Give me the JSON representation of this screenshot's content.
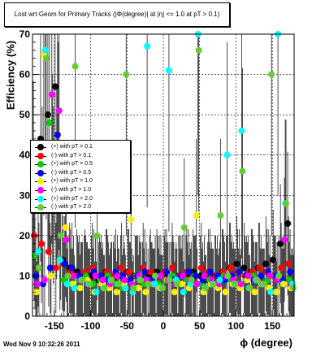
{
  "title": "Lost wrt Geom for Primary Tracks (|Φ(degree)| at |η| <= 1.0 at pT > 0.1)",
  "timestamp": "Wed Nov  9 10:32:26 2011",
  "chart_data": {
    "type": "scatter",
    "title": "Lost wrt Geom for Primary Tracks (|Φ(degree)| at |η| <= 1.0 at pT > 0.1)",
    "xlabel": "ϕ (degree)",
    "ylabel": "Efficiency (%)",
    "xlim": [
      -180,
      180
    ],
    "ylim": [
      0,
      70
    ],
    "xticks": [
      -150,
      -100,
      -50,
      0,
      50,
      100,
      150
    ],
    "yticks": [
      0,
      10,
      20,
      30,
      40,
      50,
      60,
      70
    ],
    "grid": true,
    "legend_position": "left-middle",
    "series": [
      {
        "name": "(+) with pT > 0.1",
        "color": "#000000",
        "x": [
          -175,
          -165,
          -155,
          -145,
          -135,
          -125,
          -115,
          -105,
          -95,
          -85,
          -75,
          -65,
          -55,
          -45,
          -35,
          -25,
          -15,
          -5,
          5,
          15,
          25,
          35,
          45,
          55,
          65,
          75,
          85,
          95,
          105,
          115,
          125,
          135,
          145,
          155,
          165,
          175
        ],
        "y": [
          34,
          44,
          50,
          57,
          14,
          12,
          11,
          10,
          10,
          9,
          11,
          9,
          10,
          11,
          10,
          9,
          10,
          11,
          10,
          9,
          10,
          10,
          11,
          10,
          9,
          10,
          11,
          12,
          13,
          12,
          11,
          12,
          13,
          14,
          18,
          23
        ]
      },
      {
        "name": "(-) with pT > 0.1",
        "color": "#ff0000",
        "x": [
          -175,
          -165,
          -155,
          -145,
          -135,
          -125,
          -115,
          -105,
          -95,
          -85,
          -75,
          -65,
          -55,
          -45,
          -35,
          -25,
          -15,
          -5,
          5,
          15,
          25,
          35,
          45,
          55,
          65,
          75,
          85,
          95,
          105,
          115,
          125,
          135,
          145,
          155,
          165,
          175
        ],
        "y": [
          20,
          18,
          16,
          12,
          13,
          11,
          10,
          11,
          12,
          10,
          11,
          10,
          12,
          11,
          10,
          12,
          11,
          10,
          11,
          12,
          10,
          11,
          10,
          12,
          11,
          10,
          11,
          12,
          11,
          10,
          11,
          12,
          11,
          10,
          12,
          13
        ]
      },
      {
        "name": "(+) with pT > 0.5",
        "color": "#00cc00",
        "x": [
          -175,
          -165,
          -155,
          -145,
          -135,
          -125,
          -115,
          -105,
          -95,
          -85,
          -75,
          -65,
          -55,
          -45,
          -35,
          -25,
          -15,
          -5,
          5,
          15,
          25,
          35,
          45,
          55,
          65,
          75,
          85,
          95,
          105,
          115,
          125,
          135,
          145,
          155,
          165,
          175
        ],
        "y": [
          15,
          30,
          48,
          33,
          9,
          8,
          9,
          10,
          8,
          9,
          10,
          8,
          7,
          9,
          10,
          8,
          9,
          8,
          9,
          10,
          8,
          9,
          10,
          8,
          9,
          8,
          10,
          9,
          8,
          9,
          10,
          8,
          9,
          10,
          8,
          9
        ]
      },
      {
        "name": "(-) with pT > 0.5",
        "color": "#0000ff",
        "x": [
          -175,
          -165,
          -155,
          -145,
          -135,
          -125,
          -115,
          -105,
          -95,
          -85,
          -75,
          -65,
          -55,
          -45,
          -35,
          -25,
          -15,
          -5,
          5,
          15,
          25,
          35,
          45,
          55,
          65,
          75,
          85,
          95,
          105,
          115,
          125,
          135,
          145,
          155,
          165,
          175
        ],
        "y": [
          10,
          8,
          12,
          45,
          13,
          12,
          10,
          9,
          11,
          10,
          9,
          11,
          10,
          9,
          10,
          11,
          9,
          10,
          11,
          9,
          10,
          11,
          10,
          9,
          11,
          10,
          9,
          10,
          11,
          10,
          9,
          10,
          11,
          10,
          9,
          11
        ]
      },
      {
        "name": "(+) with pT > 1.0",
        "color": "#ffee00",
        "x": [
          -175,
          -165,
          -155,
          -145,
          -135,
          -125,
          -115,
          -105,
          -95,
          -85,
          -75,
          -65,
          -55,
          -45,
          -35,
          -25,
          -15,
          -5,
          5,
          15,
          25,
          35,
          45,
          55,
          65,
          75,
          85,
          95,
          105,
          115,
          125,
          135,
          145,
          155,
          165,
          175
        ],
        "y": [
          6,
          65,
          10,
          40,
          22,
          8,
          7,
          9,
          6,
          8,
          7,
          6,
          8,
          24,
          7,
          6,
          8,
          7,
          9,
          6,
          8,
          7,
          25,
          6,
          8,
          7,
          6,
          8,
          7,
          9,
          6,
          8,
          7,
          6,
          8,
          7
        ]
      },
      {
        "name": "(-) with pT > 1.0",
        "color": "#ff00ff",
        "x": [
          -175,
          -165,
          -155,
          -145,
          -135,
          -125,
          -115,
          -105,
          -95,
          -85,
          -75,
          -65,
          -55,
          -45,
          -35,
          -25,
          -15,
          -5,
          5,
          15,
          25,
          35,
          45,
          55,
          65,
          75,
          85,
          95,
          105,
          115,
          125,
          135,
          145,
          155,
          165,
          175
        ],
        "y": [
          8,
          9,
          55,
          51,
          19,
          10,
          9,
          8,
          10,
          9,
          8,
          10,
          9,
          8,
          10,
          9,
          8,
          10,
          9,
          8,
          10,
          9,
          8,
          10,
          9,
          8,
          10,
          9,
          8,
          10,
          9,
          8,
          10,
          9,
          19,
          8
        ]
      },
      {
        "name": "(+) with pT > 2.0",
        "color": "#00ffff",
        "x": [
          -175,
          -165,
          -155,
          -145,
          -135,
          -125,
          -115,
          -105,
          -95,
          -85,
          -75,
          -65,
          -55,
          -45,
          -35,
          -25,
          -15,
          -5,
          5,
          15,
          25,
          35,
          45,
          55,
          65,
          75,
          85,
          95,
          105,
          115,
          125,
          135,
          145,
          155,
          165,
          175
        ],
        "y": [
          16,
          66,
          35,
          14,
          8,
          7,
          9,
          8,
          6,
          7,
          9,
          8,
          7,
          6,
          9,
          67,
          8,
          7,
          61,
          9,
          6,
          8,
          70,
          7,
          8,
          9,
          40,
          8,
          46,
          7,
          9,
          8,
          6,
          70,
          28,
          8
        ]
      },
      {
        "name": "(-) with pT > 2.0",
        "color": "#66cc33",
        "x": [
          -175,
          -165,
          -155,
          -145,
          -135,
          -125,
          -115,
          -105,
          -95,
          -85,
          -75,
          -65,
          -55,
          -45,
          -35,
          -25,
          -15,
          -5,
          5,
          15,
          25,
          35,
          45,
          55,
          65,
          75,
          85,
          95,
          105,
          115,
          125,
          135,
          145,
          155,
          165,
          175
        ],
        "y": [
          12,
          64,
          30,
          20,
          10,
          62,
          9,
          8,
          20,
          7,
          9,
          8,
          60,
          7,
          9,
          8,
          10,
          7,
          9,
          8,
          22,
          9,
          66,
          7,
          8,
          25,
          10,
          8,
          36,
          7,
          9,
          8,
          60,
          10,
          28,
          7
        ]
      }
    ]
  }
}
